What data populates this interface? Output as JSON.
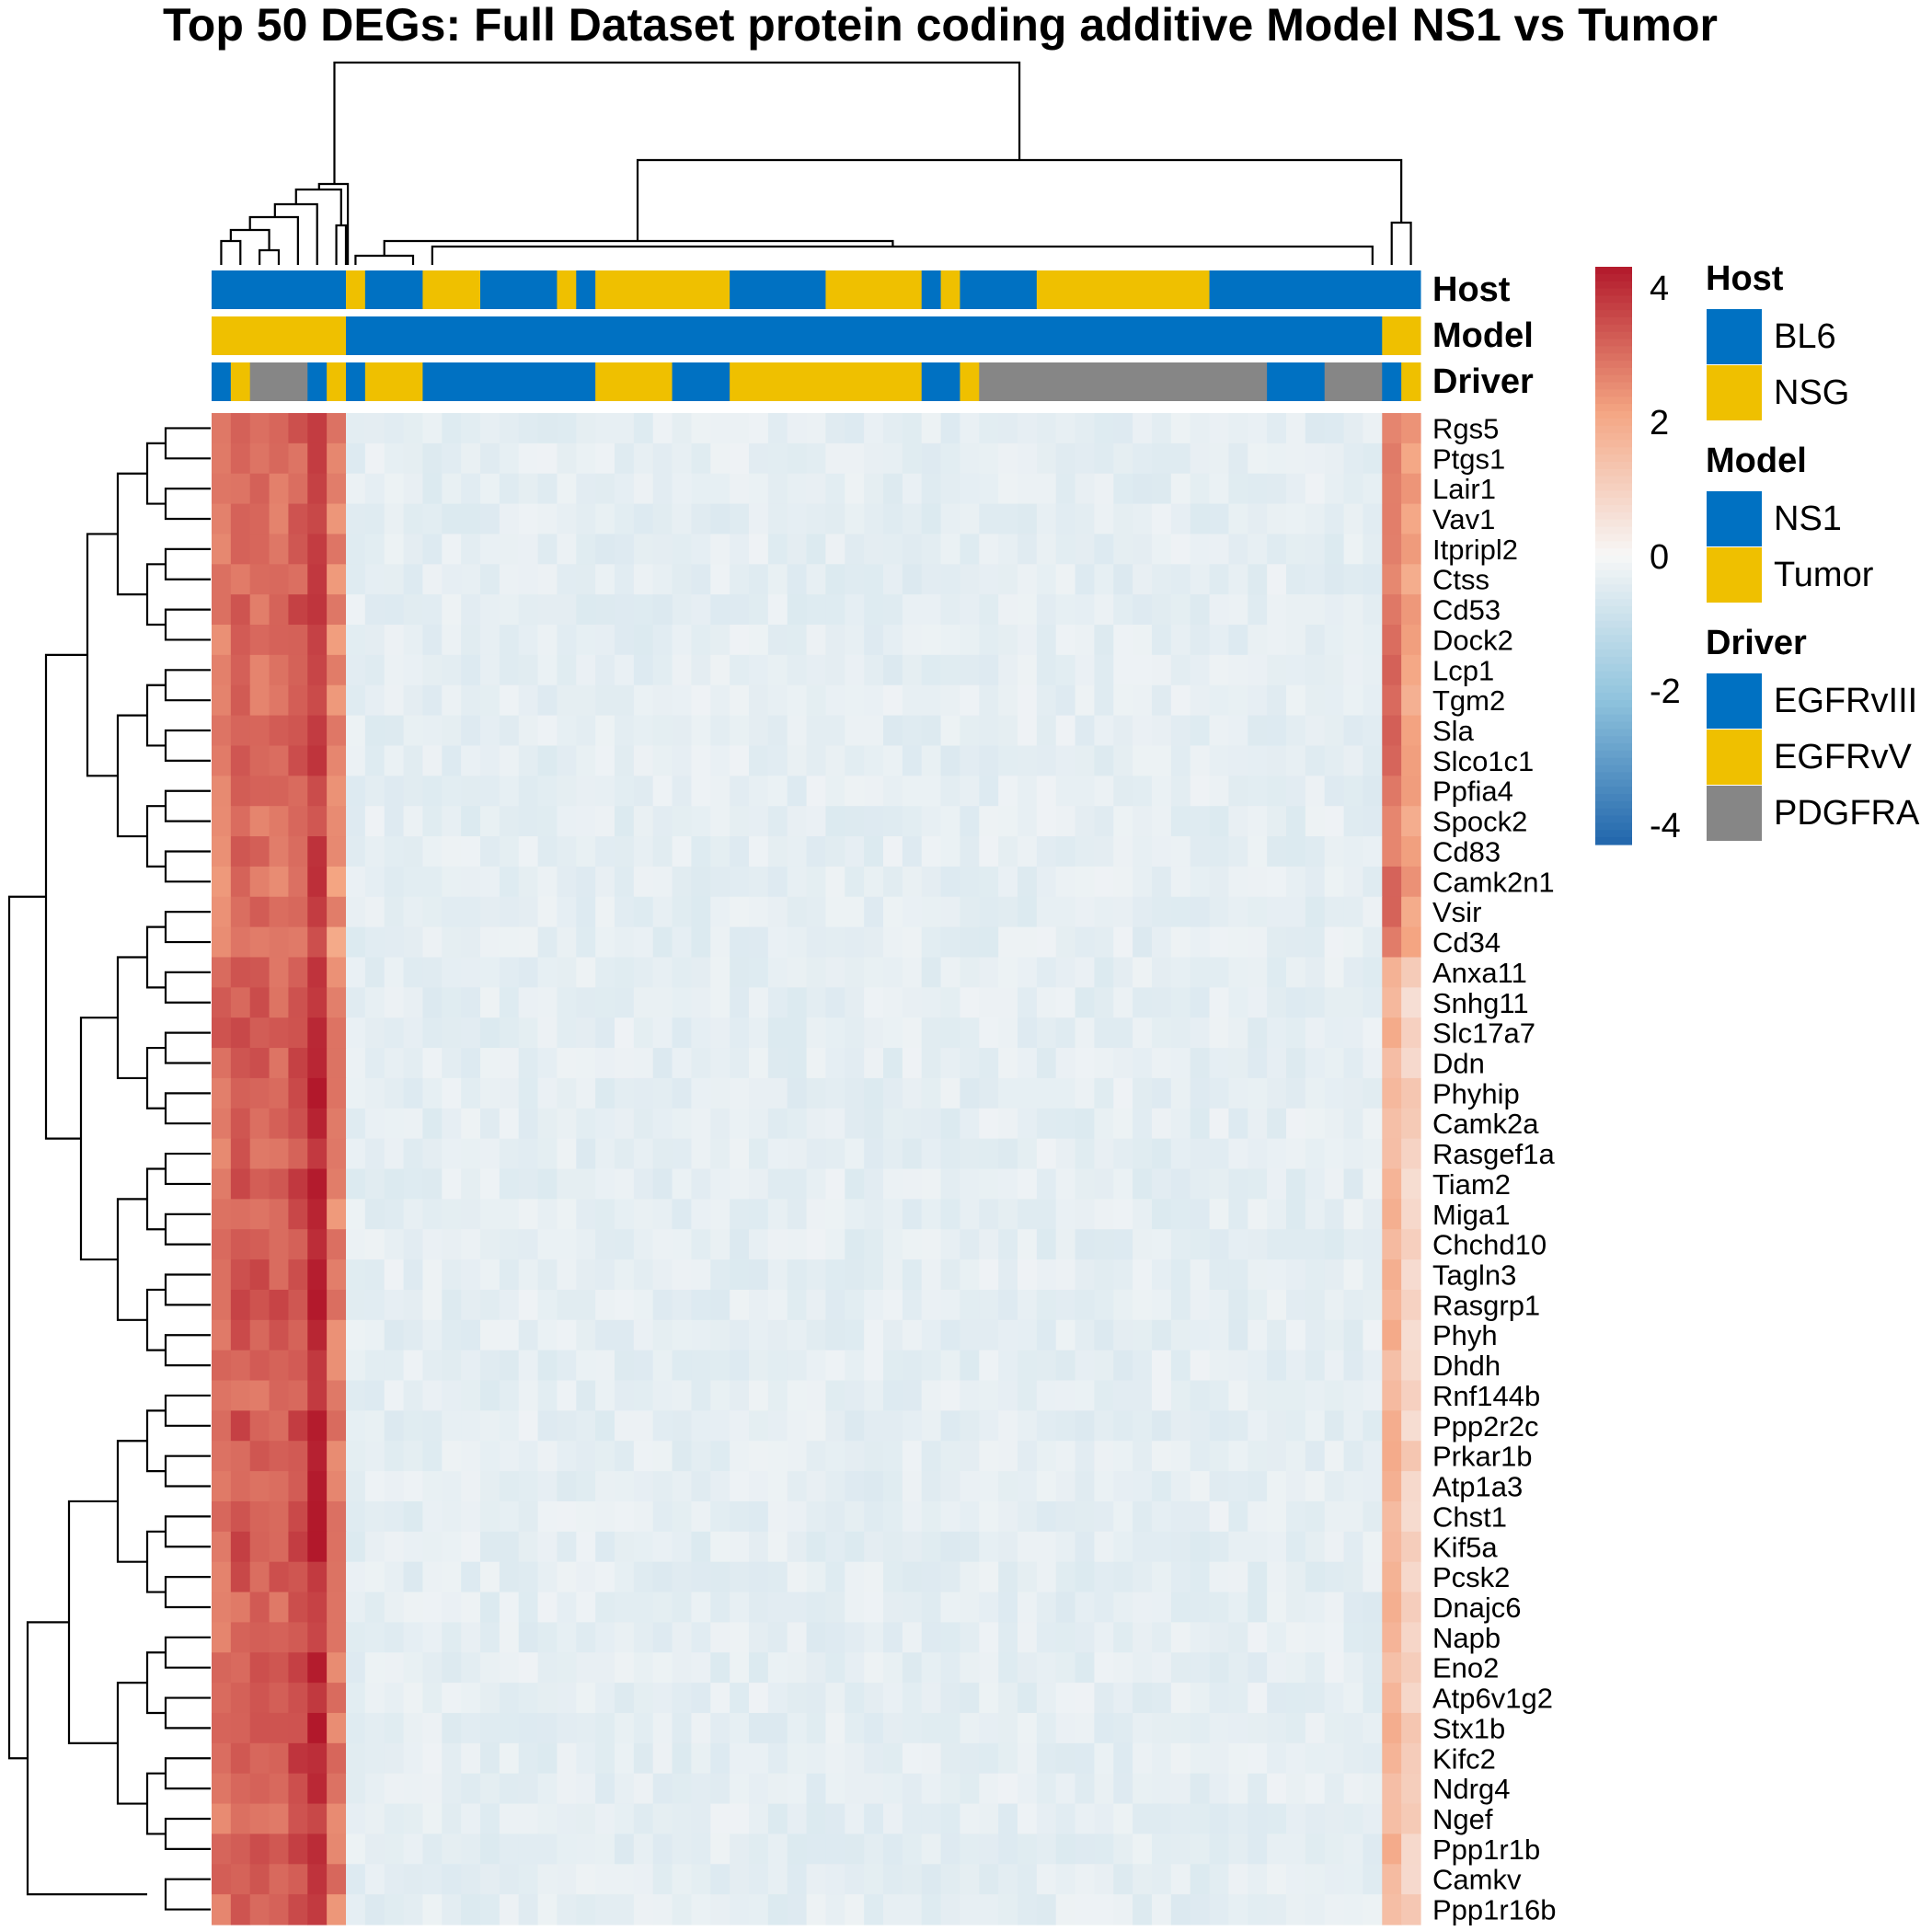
{
  "chart_data": {
    "type": "heatmap",
    "title": "Top 50 DEGs: Full Dataset protein coding additive Model NS1 vs Tumor",
    "rows": [
      "Rgs5",
      "Ptgs1",
      "Lair1",
      "Vav1",
      "Itpripl2",
      "Ctss",
      "Cd53",
      "Dock2",
      "Lcp1",
      "Tgm2",
      "Sla",
      "Slco1c1",
      "Ppfia4",
      "Spock2",
      "Cd83",
      "Camk2n1",
      "Vsir",
      "Cd34",
      "Anxa11",
      "Snhg11",
      "Slc17a7",
      "Ddn",
      "Phyhip",
      "Camk2a",
      "Rasgef1a",
      "Tiam2",
      "Miga1",
      "Chchd10",
      "Tagln3",
      "Rasgrp1",
      "Phyh",
      "Dhdh",
      "Rnf144b",
      "Ppp2r2c",
      "Prkar1b",
      "Atp1a3",
      "Chst1",
      "Kif5a",
      "Pcsk2",
      "Dnajc6",
      "Napb",
      "Eno2",
      "Atp6v1g2",
      "Stx1b",
      "Kifc2",
      "Ndrg4",
      "Ngef",
      "Ppp1r1b",
      "Camkv",
      "Ppp1r16b"
    ],
    "n_samples": 63,
    "annotation_tracks": [
      {
        "name": "Host",
        "levels": [
          "BL6",
          "NSG"
        ],
        "runs": [
          [
            "BL6",
            7
          ],
          [
            "NSG",
            1
          ],
          [
            "BL6",
            3
          ],
          [
            "NSG",
            3
          ],
          [
            "BL6",
            4
          ],
          [
            "NSG",
            1
          ],
          [
            "BL6",
            1
          ],
          [
            "NSG",
            7
          ],
          [
            "BL6",
            5
          ],
          [
            "NSG",
            5
          ],
          [
            "BL6",
            1
          ],
          [
            "NSG",
            1
          ],
          [
            "BL6",
            4
          ],
          [
            "NSG",
            9
          ],
          [
            "BL6",
            11
          ]
        ]
      },
      {
        "name": "Model",
        "levels": [
          "NS1",
          "Tumor"
        ],
        "runs": [
          [
            "Tumor",
            7
          ],
          [
            "NS1",
            54
          ],
          [
            "Tumor",
            2
          ]
        ]
      },
      {
        "name": "Driver",
        "levels": [
          "EGFRvIII",
          "EGFRvV",
          "PDGFRA"
        ],
        "runs": [
          [
            "EGFRvIII",
            1
          ],
          [
            "EGFRvV",
            1
          ],
          [
            "PDGFRA",
            3
          ],
          [
            "EGFRvIII",
            1
          ],
          [
            "EGFRvV",
            1
          ],
          [
            "EGFRvIII",
            1
          ],
          [
            "EGFRvV",
            3
          ],
          [
            "EGFRvIII",
            9
          ],
          [
            "EGFRvV",
            4
          ],
          [
            "EGFRvIII",
            3
          ],
          [
            "EGFRvV",
            10
          ],
          [
            "EGFRvIII",
            2
          ],
          [
            "EGFRvV",
            1
          ],
          [
            "PDGFRA",
            15
          ],
          [
            "EGFRvIII",
            3
          ],
          [
            "PDGFRA",
            3
          ],
          [
            "EGFRvIII",
            1
          ],
          [
            "EGFRvV",
            1
          ]
        ]
      }
    ],
    "value_pattern": {
      "tumor_block_left": [
        2.6,
        2.9,
        2.8,
        2.8,
        3.1,
        3.6,
        2.4
      ],
      "tumor_block_right": [
        2.3,
        1.6
      ],
      "ns1_baseline": -0.35
    },
    "color_scale": {
      "min": -4,
      "max": 4,
      "stops": [
        {
          "value": -4,
          "color": "#2166AC"
        },
        {
          "value": -2,
          "color": "#8FC3DD"
        },
        {
          "value": 0,
          "color": "#F7F7F7"
        },
        {
          "value": 2,
          "color": "#F4A582"
        },
        {
          "value": 4,
          "color": "#B2182B"
        }
      ],
      "ticks": [
        "4",
        "2",
        "0",
        "-2",
        "-4"
      ]
    },
    "legends": [
      {
        "title": "Host",
        "entries": [
          {
            "label": "BL6",
            "color": "#0071C2"
          },
          {
            "label": "NSG",
            "color": "#EFC000"
          }
        ]
      },
      {
        "title": "Model",
        "entries": [
          {
            "label": "NS1",
            "color": "#0071C2"
          },
          {
            "label": "Tumor",
            "color": "#EFC000"
          }
        ]
      },
      {
        "title": "Driver",
        "entries": [
          {
            "label": "EGFRvIII",
            "color": "#0071C2"
          },
          {
            "label": "EGFRvV",
            "color": "#EFC000"
          },
          {
            "label": "PDGFRA",
            "color": "#868686"
          }
        ]
      }
    ],
    "level_colors": {
      "BL6": "#0071C2",
      "NSG": "#EFC000",
      "NS1": "#0071C2",
      "Tumor": "#EFC000",
      "EGFRvIII": "#0071C2",
      "EGFRvV": "#EFC000",
      "PDGFRA": "#868686"
    },
    "dendrogram_color": "#000000"
  }
}
